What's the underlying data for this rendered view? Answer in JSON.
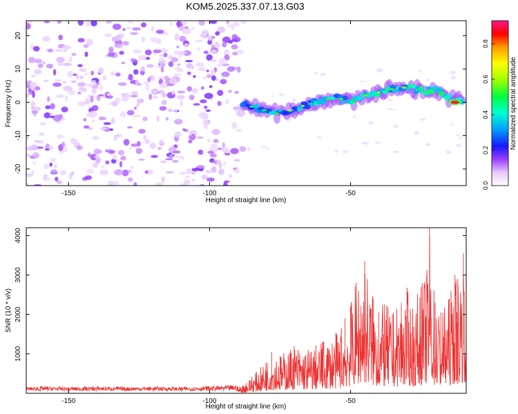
{
  "title": "KOM5.2025.337.07.13.G03",
  "chart_data": [
    {
      "type": "heatmap",
      "title": "KOM5.2025.337.07.13.G03",
      "xlabel": "Height of straight line (km)",
      "ylabel": "Frequency (Hz)",
      "xlim": [
        -165,
        -9
      ],
      "ylim": [
        -25,
        24.5
      ],
      "x_ticks": [
        "-150",
        "-100",
        "-50"
      ],
      "x_tick_values": [
        -150,
        -100,
        -50
      ],
      "y_ticks": [
        "20",
        "10",
        "0",
        "-10",
        "-20"
      ],
      "y_tick_values": [
        20,
        10,
        0,
        -10,
        -20
      ],
      "noise_region_x": [
        -165,
        -88
      ],
      "signal_ridge": {
        "x": [
          -88,
          -80,
          -75,
          -70,
          -65,
          -60,
          -55,
          -50,
          -45,
          -40,
          -35,
          -30,
          -25,
          -20,
          -15,
          -10
        ],
        "freq": [
          -0.5,
          -2.5,
          -3.5,
          -2.0,
          -0.5,
          0.5,
          1.5,
          0.0,
          2.0,
          3.0,
          4.0,
          4.5,
          3.5,
          3.5,
          1.5,
          0.0
        ]
      },
      "peak": {
        "x": -13,
        "freq": 0,
        "amplitude": 0.9
      },
      "colorbar": {
        "label": "Normalized spectral amplitude",
        "range": [
          0,
          0.93
        ],
        "ticks": [
          "0.0",
          "0.2",
          "0.4",
          "0.6",
          "0.8"
        ],
        "tick_values": [
          0.0,
          0.2,
          0.4,
          0.6,
          0.8
        ]
      }
    },
    {
      "type": "line",
      "xlabel": "Height of straight line (km)",
      "ylabel": "SNR (10 * v/v)",
      "xlim": [
        -165,
        -9
      ],
      "ylim": [
        0,
        4200
      ],
      "x_ticks": [
        "-150",
        "-100",
        "-50"
      ],
      "x_tick_values": [
        -150,
        -100,
        -50
      ],
      "y_ticks": [
        "1000",
        "2000",
        "3000",
        "4000"
      ],
      "y_tick_values": [
        1000,
        2000,
        3000,
        4000
      ],
      "color": "#ee3333",
      "series": [
        {
          "name": "SNR",
          "x": [
            -165,
            -160,
            -150,
            -140,
            -130,
            -120,
            -110,
            -100,
            -95,
            -90,
            -87,
            -85,
            -80,
            -78,
            -75,
            -70,
            -65,
            -60,
            -55,
            -52,
            -50,
            -48,
            -45,
            -42,
            -40,
            -38,
            -35,
            -32,
            -30,
            -28,
            -25,
            -23,
            -22,
            -20,
            -18,
            -15,
            -13,
            -12,
            -10
          ],
          "y": [
            100,
            130,
            110,
            125,
            115,
            120,
            110,
            135,
            150,
            170,
            260,
            420,
            780,
            1050,
            950,
            1200,
            1100,
            1300,
            1500,
            1900,
            2200,
            2800,
            3350,
            2400,
            2050,
            2250,
            2000,
            2300,
            2600,
            2150,
            2700,
            3000,
            4200,
            2300,
            2050,
            2400,
            3000,
            2900,
            3550
          ]
        }
      ]
    }
  ]
}
